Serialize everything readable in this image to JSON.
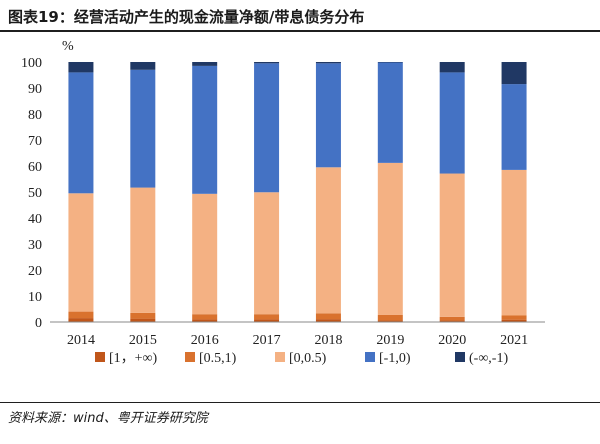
{
  "header": {
    "title": "图表19：经营活动产生的现金流量净额/带息债务分布"
  },
  "source": "资料来源：wind、粤开证券研究院",
  "chart_data": {
    "type": "bar",
    "stacked": true,
    "ylabel": "%",
    "ylim": [
      0,
      100
    ],
    "yticks": [
      0,
      10,
      20,
      30,
      40,
      50,
      60,
      70,
      80,
      90,
      100
    ],
    "categories": [
      "2014",
      "2015",
      "2016",
      "2017",
      "2018",
      "2019",
      "2020",
      "2021"
    ],
    "legend_position": "bottom",
    "series": [
      {
        "name": "[1，+∞)",
        "color": "#c0561a",
        "values": [
          1.5,
          1.3,
          1.0,
          1.0,
          1.1,
          0.6,
          0.6,
          0.9
        ]
      },
      {
        "name": "[0.5,1)",
        "color": "#d9722e",
        "values": [
          2.5,
          2.2,
          2.0,
          2.0,
          2.2,
          2.1,
          1.4,
          1.6
        ]
      },
      {
        "name": "[0,0.5)",
        "color": "#f4b183",
        "values": [
          45.5,
          48.2,
          46.3,
          46.9,
          56.2,
          58.5,
          55.1,
          56.0
        ]
      },
      {
        "name": "[-1,0)",
        "color": "#4472c4",
        "values": [
          46.5,
          45.3,
          49.2,
          49.6,
          40.0,
          38.6,
          38.9,
          33.0
        ]
      },
      {
        "name": "(-∞,-1)",
        "color": "#203864",
        "values": [
          4.0,
          3.0,
          1.5,
          0.5,
          0.5,
          0.2,
          4.0,
          8.5
        ]
      }
    ]
  }
}
